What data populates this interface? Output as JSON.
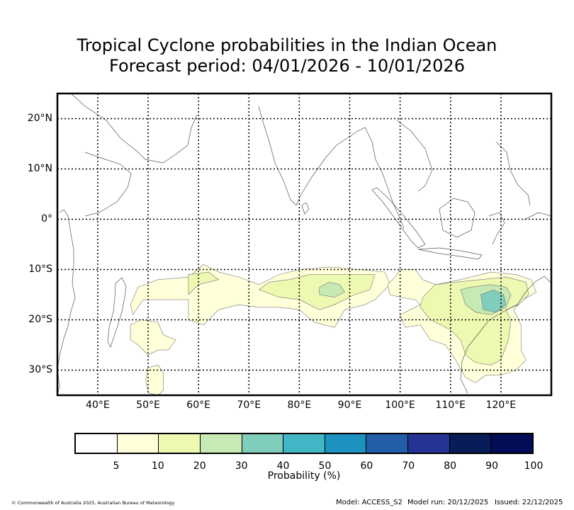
{
  "title": {
    "line1": "Tropical Cyclone probabilities in the Indian Ocean",
    "line2": "Forecast period: 04/01/2026 - 10/01/2026"
  },
  "map": {
    "lon_range": [
      32,
      130
    ],
    "lat_range": [
      -35,
      25
    ],
    "lat_ticks": [
      {
        "lat": 20,
        "label": "20°N"
      },
      {
        "lat": 10,
        "label": "10°N"
      },
      {
        "lat": 0,
        "label": "0°"
      },
      {
        "lat": -10,
        "label": "10°S"
      },
      {
        "lat": -20,
        "label": "20°S"
      },
      {
        "lat": -30,
        "label": "30°S"
      }
    ],
    "lon_ticks": [
      {
        "lon": 40,
        "label": "40°E"
      },
      {
        "lon": 50,
        "label": "50°E"
      },
      {
        "lon": 60,
        "label": "60°E"
      },
      {
        "lon": 70,
        "label": "70°E"
      },
      {
        "lon": 80,
        "label": "80°E"
      },
      {
        "lon": 90,
        "label": "90°E"
      },
      {
        "lon": 100,
        "label": "100°E"
      },
      {
        "lon": 110,
        "label": "110°E"
      },
      {
        "lon": 120,
        "label": "120°E"
      }
    ]
  },
  "colorbar": {
    "colors": [
      "#ffffff",
      "#ffffd9",
      "#edf8b1",
      "#c7e9b4",
      "#7fcdbb",
      "#41b6c4",
      "#1d91c0",
      "#225ea8",
      "#253494",
      "#081d58",
      "#030c57"
    ],
    "tick_labels": [
      "5",
      "10",
      "20",
      "30",
      "40",
      "50",
      "60",
      "70",
      "80",
      "90",
      "100"
    ],
    "label": "Probability (%)"
  },
  "footer": {
    "copyright": "© Commonwealth of Australia 2025, Australian Bureau of Meteorology",
    "model": "Model: ACCESS_S2",
    "model_run": "Model run: 20/12/2025",
    "issued": "Issued: 22/12/2025"
  },
  "probability_regions": [
    {
      "level": "5-10%",
      "color": "#ffffd9",
      "polygon": [
        [
          46.5,
          -17
        ],
        [
          48,
          -13.5
        ],
        [
          52,
          -12
        ],
        [
          58,
          -11.5
        ],
        [
          61,
          -9
        ],
        [
          64,
          -10.5
        ],
        [
          68,
          -11.5
        ],
        [
          72,
          -13
        ],
        [
          76,
          -11
        ],
        [
          80,
          -10
        ],
        [
          86,
          -9.5
        ],
        [
          92,
          -10
        ],
        [
          97,
          -10.5
        ],
        [
          98,
          -13
        ],
        [
          95,
          -16
        ],
        [
          93,
          -17
        ],
        [
          89,
          -18
        ],
        [
          87,
          -21.5
        ],
        [
          83,
          -20.5
        ],
        [
          80,
          -18
        ],
        [
          76,
          -17.5
        ],
        [
          72,
          -17.5
        ],
        [
          68,
          -17
        ],
        [
          64,
          -18
        ],
        [
          61,
          -21
        ],
        [
          58,
          -20
        ],
        [
          58,
          -16
        ],
        [
          52,
          -16
        ],
        [
          49,
          -16
        ],
        [
          47,
          -19
        ]
      ]
    },
    {
      "level": "5-10%",
      "color": "#ffffd9",
      "polygon": [
        [
          46.5,
          -21
        ],
        [
          48.5,
          -20
        ],
        [
          52,
          -20.5
        ],
        [
          53,
          -23
        ],
        [
          55.5,
          -24
        ],
        [
          54,
          -26
        ],
        [
          52,
          -26
        ],
        [
          50,
          -27
        ],
        [
          48,
          -25
        ],
        [
          46.5,
          -24
        ]
      ]
    },
    {
      "level": "5-10%",
      "color": "#ffffd9",
      "polygon": [
        [
          50,
          -29.5
        ],
        [
          52,
          -29
        ],
        [
          53,
          -30.5
        ],
        [
          53,
          -34
        ],
        [
          52,
          -35
        ],
        [
          50,
          -34.5
        ],
        [
          49.5,
          -32
        ]
      ]
    },
    {
      "level": "5-10%",
      "color": "#ffffd9",
      "polygon": [
        [
          100,
          -10
        ],
        [
          103,
          -10
        ],
        [
          104.5,
          -12
        ],
        [
          107,
          -13
        ],
        [
          112,
          -12
        ],
        [
          118,
          -10.5
        ],
        [
          123,
          -11
        ],
        [
          126,
          -12
        ],
        [
          127,
          -14.5
        ],
        [
          124.5,
          -16
        ],
        [
          122.5,
          -18
        ],
        [
          124,
          -21
        ],
        [
          124,
          -26
        ],
        [
          125,
          -28
        ],
        [
          123,
          -30
        ],
        [
          120,
          -31
        ],
        [
          117,
          -31
        ],
        [
          115,
          -32.5
        ],
        [
          113,
          -31.5
        ],
        [
          111,
          -28
        ],
        [
          109,
          -25
        ],
        [
          106,
          -24
        ],
        [
          104,
          -21
        ],
        [
          101,
          -21.5
        ],
        [
          100,
          -19
        ],
        [
          102,
          -18
        ],
        [
          104,
          -17
        ],
        [
          103,
          -16
        ],
        [
          100,
          -15.5
        ],
        [
          98,
          -15
        ],
        [
          97.5,
          -13
        ],
        [
          99,
          -11.5
        ]
      ]
    },
    {
      "level": "10-20%",
      "color": "#edf8b1",
      "polygon": [
        [
          58,
          -11
        ],
        [
          62,
          -10.5
        ],
        [
          64,
          -12
        ],
        [
          60,
          -13
        ],
        [
          58,
          -15
        ]
      ]
    },
    {
      "level": "10-20%",
      "color": "#edf8b1",
      "polygon": [
        [
          72,
          -14
        ],
        [
          74,
          -12.5
        ],
        [
          78,
          -12
        ],
        [
          82,
          -11
        ],
        [
          87,
          -11
        ],
        [
          91,
          -11
        ],
        [
          95,
          -11
        ],
        [
          94,
          -14
        ],
        [
          91,
          -15
        ],
        [
          87,
          -17
        ],
        [
          84,
          -18
        ],
        [
          80,
          -16
        ],
        [
          76,
          -15.5
        ]
      ]
    },
    {
      "level": "10-20%",
      "color": "#edf8b1",
      "polygon": [
        [
          107,
          -13
        ],
        [
          111,
          -12.5
        ],
        [
          116,
          -12
        ],
        [
          121,
          -11.5
        ],
        [
          125,
          -12.5
        ],
        [
          125.5,
          -15
        ],
        [
          123.5,
          -17
        ],
        [
          121,
          -18
        ],
        [
          122,
          -20
        ],
        [
          121.5,
          -24
        ],
        [
          120,
          -28
        ],
        [
          118,
          -29
        ],
        [
          115,
          -28.5
        ],
        [
          113,
          -27
        ],
        [
          112,
          -24
        ],
        [
          110,
          -22
        ],
        [
          106,
          -20
        ],
        [
          104,
          -17.5
        ],
        [
          104.5,
          -15.5
        ]
      ]
    },
    {
      "level": "20-30%",
      "color": "#c7e9b4",
      "polygon": [
        [
          84,
          -13.5
        ],
        [
          86,
          -12.5
        ],
        [
          88,
          -13
        ],
        [
          89,
          -14.5
        ],
        [
          87,
          -15.5
        ],
        [
          84,
          -15
        ]
      ]
    },
    {
      "level": "20-30%",
      "color": "#c7e9b4",
      "polygon": [
        [
          112,
          -14
        ],
        [
          114,
          -13.5
        ],
        [
          118,
          -13
        ],
        [
          121,
          -13.5
        ],
        [
          122,
          -15
        ],
        [
          121,
          -17.5
        ],
        [
          118,
          -19
        ],
        [
          115,
          -18.5
        ],
        [
          113,
          -17
        ]
      ]
    },
    {
      "level": "30-40%",
      "color": "#7fcdbb",
      "polygon": [
        [
          116,
          -15
        ],
        [
          118.5,
          -14
        ],
        [
          120.5,
          -15
        ],
        [
          121,
          -17
        ],
        [
          119,
          -18.5
        ],
        [
          116.5,
          -18
        ]
      ]
    }
  ]
}
